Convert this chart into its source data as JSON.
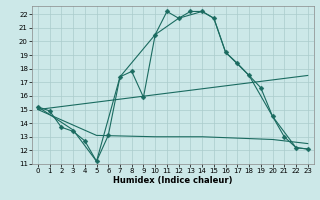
{
  "xlabel": "Humidex (Indice chaleur)",
  "bg_color": "#cce8e8",
  "line_color": "#1a6b60",
  "grid_color": "#aacccc",
  "xlim": [
    -0.5,
    23.5
  ],
  "ylim": [
    11,
    22.6
  ],
  "yticks": [
    11,
    12,
    13,
    14,
    15,
    16,
    17,
    18,
    19,
    20,
    21,
    22
  ],
  "xticks": [
    0,
    1,
    2,
    3,
    4,
    5,
    6,
    7,
    8,
    9,
    10,
    11,
    12,
    13,
    14,
    15,
    16,
    17,
    18,
    19,
    20,
    21,
    22,
    23
  ],
  "line1_x": [
    0,
    1,
    2,
    3,
    4,
    5,
    6,
    7,
    8,
    9,
    10,
    11,
    12,
    13,
    14,
    15,
    16,
    17,
    18,
    19,
    20,
    21,
    22,
    23
  ],
  "line1_y": [
    15.2,
    14.9,
    13.7,
    13.4,
    12.7,
    11.2,
    13.1,
    17.4,
    17.8,
    15.9,
    20.5,
    22.2,
    21.7,
    22.2,
    22.2,
    21.7,
    19.2,
    18.4,
    17.5,
    16.6,
    14.5,
    13.0,
    12.2,
    12.1
  ],
  "line2_x": [
    0,
    3,
    5,
    7,
    10,
    12,
    14,
    15,
    16,
    18,
    20,
    22,
    23
  ],
  "line2_y": [
    15.2,
    13.5,
    11.2,
    17.4,
    20.5,
    21.7,
    22.2,
    21.7,
    19.2,
    17.5,
    14.5,
    12.2,
    12.1
  ],
  "line3_x": [
    0,
    5,
    10,
    14,
    20,
    23
  ],
  "line3_y": [
    15.0,
    13.1,
    13.0,
    13.0,
    12.8,
    12.5
  ],
  "line4_x": [
    0,
    23
  ],
  "line4_y": [
    15.0,
    17.5
  ]
}
